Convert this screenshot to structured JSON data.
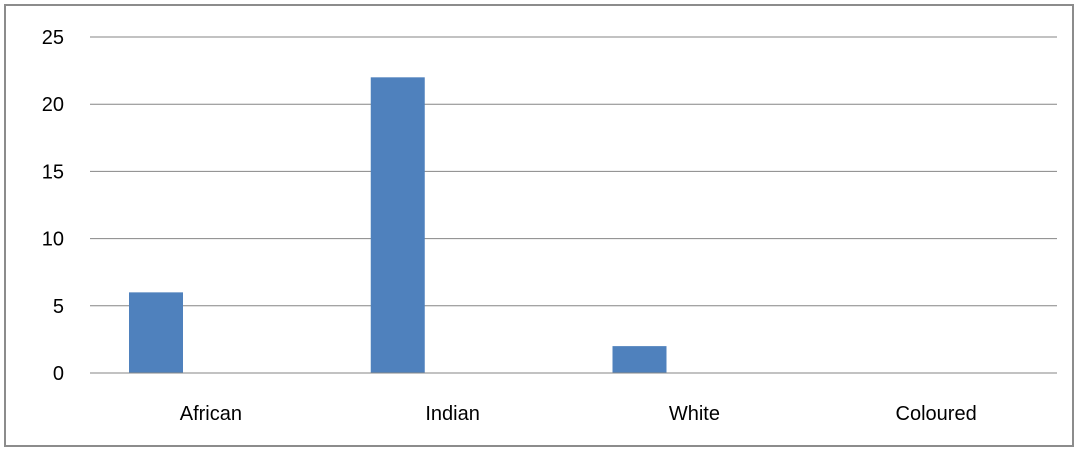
{
  "chart_data": {
    "type": "bar",
    "categories": [
      "African",
      "Indian",
      "White",
      "Coloured"
    ],
    "series": [
      {
        "values": [
          6,
          22,
          2,
          0
        ]
      }
    ],
    "title": "",
    "xlabel": "",
    "ylabel": "",
    "ylim": [
      0,
      25
    ],
    "yticks": [
      0,
      5,
      10,
      15,
      20,
      25
    ],
    "grid": true,
    "legend": "none",
    "bar_color": "#4f81bd",
    "grid_color": "#868686"
  }
}
